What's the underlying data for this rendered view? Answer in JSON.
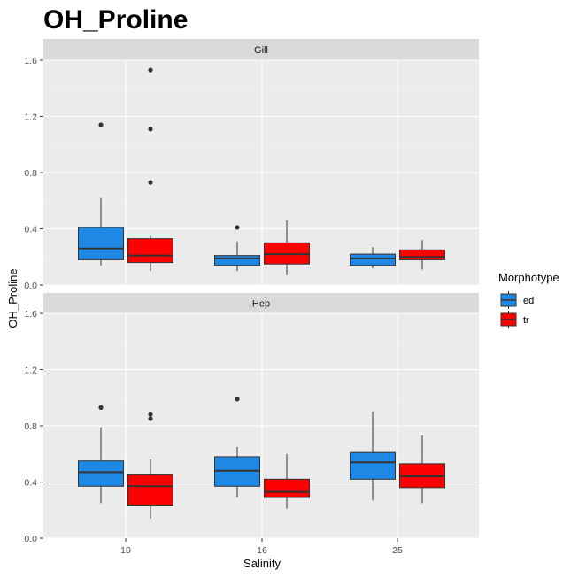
{
  "chart_data": {
    "type": "box",
    "title": "OH_Proline",
    "xlabel": "Salinity",
    "ylabel": "OH_Proline",
    "categories": [
      "10",
      "16",
      "25"
    ],
    "y_ticks": [
      "0.0",
      "0.4",
      "0.8",
      "1.2",
      "1.6"
    ],
    "ylim": [
      0,
      1.6
    ],
    "grid": true,
    "legend": {
      "title": "Morphotype",
      "placement": "right",
      "entries": [
        {
          "label": "ed",
          "color": "#1e88e5"
        },
        {
          "label": "tr",
          "color": "#ff0000"
        }
      ]
    },
    "panels": [
      {
        "strip": "Gill",
        "boxes": [
          {
            "category": "10",
            "group": "ed",
            "min": 0.14,
            "q1": 0.18,
            "median": 0.26,
            "q3": 0.41,
            "max": 0.62,
            "outliers": [
              1.14
            ]
          },
          {
            "category": "10",
            "group": "tr",
            "min": 0.1,
            "q1": 0.16,
            "median": 0.21,
            "q3": 0.33,
            "max": 0.35,
            "outliers": [
              0.73,
              1.11,
              1.53
            ]
          },
          {
            "category": "16",
            "group": "ed",
            "min": 0.1,
            "q1": 0.14,
            "median": 0.19,
            "q3": 0.21,
            "max": 0.31,
            "outliers": [
              0.41
            ]
          },
          {
            "category": "16",
            "group": "tr",
            "min": 0.07,
            "q1": 0.15,
            "median": 0.22,
            "q3": 0.3,
            "max": 0.46,
            "outliers": []
          },
          {
            "category": "25",
            "group": "ed",
            "min": 0.12,
            "q1": 0.14,
            "median": 0.19,
            "q3": 0.22,
            "max": 0.27,
            "outliers": []
          },
          {
            "category": "25",
            "group": "tr",
            "min": 0.11,
            "q1": 0.18,
            "median": 0.2,
            "q3": 0.25,
            "max": 0.32,
            "outliers": []
          }
        ]
      },
      {
        "strip": "Hep",
        "boxes": [
          {
            "category": "10",
            "group": "ed",
            "min": 0.25,
            "q1": 0.37,
            "median": 0.47,
            "q3": 0.55,
            "max": 0.79,
            "outliers": [
              0.93
            ]
          },
          {
            "category": "10",
            "group": "tr",
            "min": 0.14,
            "q1": 0.23,
            "median": 0.37,
            "q3": 0.45,
            "max": 0.56,
            "outliers": [
              0.85,
              0.88
            ]
          },
          {
            "category": "16",
            "group": "ed",
            "min": 0.29,
            "q1": 0.37,
            "median": 0.48,
            "q3": 0.58,
            "max": 0.65,
            "outliers": [
              0.99
            ]
          },
          {
            "category": "16",
            "group": "tr",
            "min": 0.21,
            "q1": 0.29,
            "median": 0.33,
            "q3": 0.42,
            "max": 0.6,
            "outliers": []
          },
          {
            "category": "25",
            "group": "ed",
            "min": 0.27,
            "q1": 0.42,
            "median": 0.54,
            "q3": 0.61,
            "max": 0.9,
            "outliers": []
          },
          {
            "category": "25",
            "group": "tr",
            "min": 0.25,
            "q1": 0.36,
            "median": 0.44,
            "q3": 0.53,
            "max": 0.73,
            "outliers": []
          }
        ]
      }
    ]
  }
}
